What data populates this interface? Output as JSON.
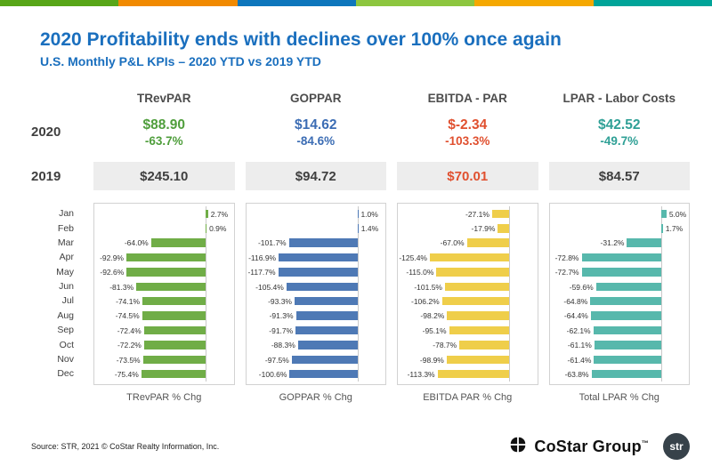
{
  "top_strip_colors": [
    "#58A618",
    "#F18A00",
    "#0E76BC",
    "#8DC63F",
    "#F5A800",
    "#00A499"
  ],
  "header": {
    "title": "2020 Profitability ends with declines over 100% once again",
    "subtitle": "U.S. Monthly P&L KPIs – 2020 YTD vs 2019 YTD"
  },
  "kpi": {
    "row_2020_label": "2020",
    "row_2019_label": "2019",
    "columns": [
      {
        "name": "TRevPAR",
        "accent": "#4F9E3C",
        "value_2020": "$88.90",
        "change_2020": "-63.7%",
        "value_2019": "$245.10",
        "value_2019_color": "#3F3F3F"
      },
      {
        "name": "GOPPAR",
        "accent": "#3C6DB4",
        "value_2020": "$14.62",
        "change_2020": "-84.6%",
        "value_2019": "$94.72",
        "value_2019_color": "#3F3F3F"
      },
      {
        "name": "EBITDA - PAR",
        "accent": "#E0502F",
        "value_2020": "$-2.34",
        "change_2020": "-103.3%",
        "value_2019": "$70.01",
        "value_2019_color": "#E0502F"
      },
      {
        "name": "LPAR - Labor Costs",
        "accent": "#2FA096",
        "value_2020": "$42.52",
        "change_2020": "-49.7%",
        "value_2019": "$84.57",
        "value_2019_color": "#3F3F3F"
      }
    ]
  },
  "months": [
    "Jan",
    "Feb",
    "Mar",
    "Apr",
    "May",
    "Jun",
    "Jul",
    "Aug",
    "Sep",
    "Oct",
    "Nov",
    "Dec"
  ],
  "chart_data": [
    {
      "type": "bar",
      "orientation": "horizontal",
      "title": "TRevPAR % Chg",
      "color": "#70AD47",
      "unit": "%",
      "categories": [
        "Jan",
        "Feb",
        "Mar",
        "Apr",
        "May",
        "Jun",
        "Jul",
        "Aug",
        "Sep",
        "Oct",
        "Nov",
        "Dec"
      ],
      "values": [
        2.7,
        0.9,
        -64.0,
        -92.9,
        -92.6,
        -81.3,
        -74.1,
        -74.5,
        -72.4,
        -72.2,
        -73.5,
        -75.4
      ]
    },
    {
      "type": "bar",
      "orientation": "horizontal",
      "title": "GOPPAR % Chg",
      "color": "#4E79B5",
      "unit": "%",
      "categories": [
        "Jan",
        "Feb",
        "Mar",
        "Apr",
        "May",
        "Jun",
        "Jul",
        "Aug",
        "Sep",
        "Oct",
        "Nov",
        "Dec"
      ],
      "values": [
        1.0,
        1.4,
        -101.7,
        -116.9,
        -117.7,
        -105.4,
        -93.3,
        -91.3,
        -91.7,
        -88.3,
        -97.5,
        -100.6
      ]
    },
    {
      "type": "bar",
      "orientation": "horizontal",
      "title": "EBITDA PAR % Chg",
      "color": "#EFCE4A",
      "unit": "%",
      "categories": [
        "Jan",
        "Feb",
        "Mar",
        "Apr",
        "May",
        "Jun",
        "Jul",
        "Aug",
        "Sep",
        "Oct",
        "Nov",
        "Dec"
      ],
      "values": [
        -27.1,
        -17.9,
        -67.0,
        -125.4,
        -115.0,
        -101.5,
        -106.2,
        -98.2,
        -95.1,
        -78.7,
        -98.9,
        -113.3
      ]
    },
    {
      "type": "bar",
      "orientation": "horizontal",
      "title": "Total LPAR % Chg",
      "color": "#57B8AC",
      "unit": "%",
      "categories": [
        "Jan",
        "Feb",
        "Mar",
        "Apr",
        "May",
        "Jun",
        "Jul",
        "Aug",
        "Sep",
        "Oct",
        "Nov",
        "Dec"
      ],
      "values": [
        5.0,
        1.7,
        -31.2,
        -72.8,
        -72.7,
        -59.6,
        -64.8,
        -64.4,
        -62.1,
        -61.1,
        -61.4,
        -63.8
      ]
    }
  ],
  "footer": {
    "source": "Source: STR, 2021 © CoStar Realty Information, Inc.",
    "costar_label": "CoStar Group",
    "costar_tm": "™",
    "str_label": "str"
  }
}
